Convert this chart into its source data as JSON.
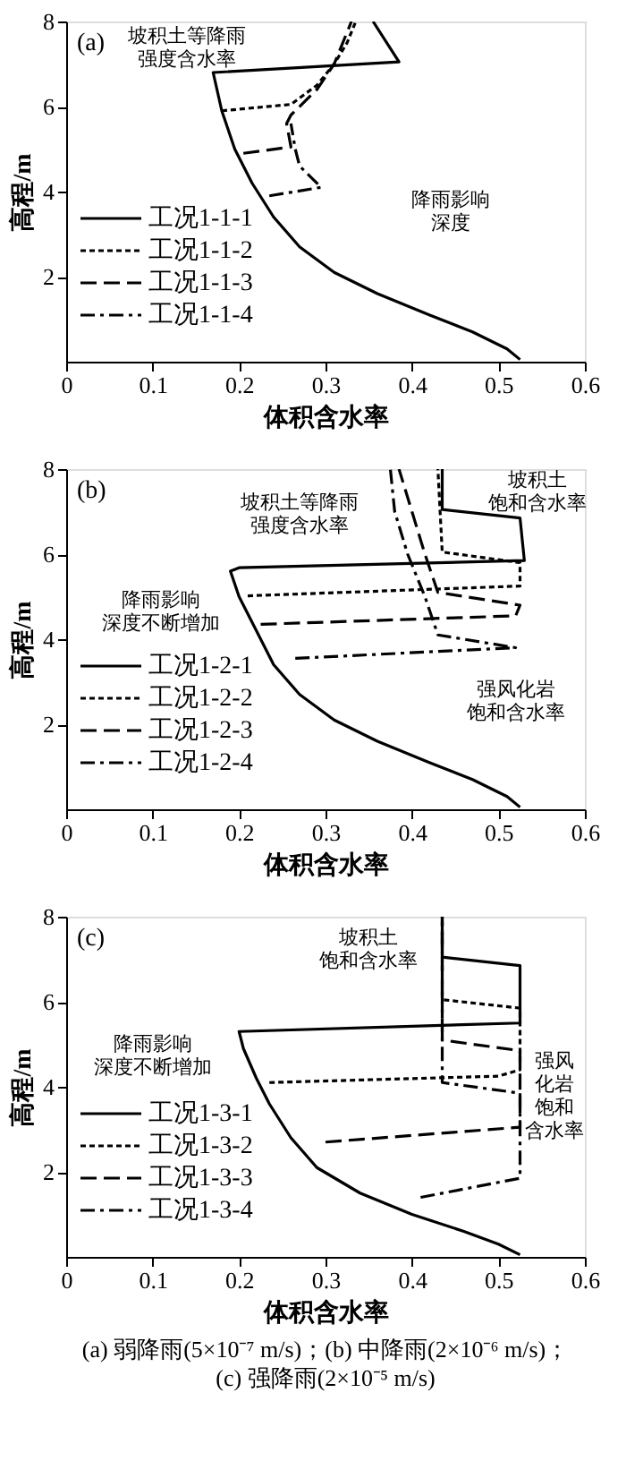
{
  "chart_data": [
    {
      "type": "line",
      "title": "(a)",
      "xlabel": "体积含水率",
      "ylabel": "高程/m",
      "xlim": [
        0,
        0.6
      ],
      "ylim": [
        0,
        8
      ],
      "xticks": [
        0,
        0.1,
        0.2,
        0.3,
        0.4,
        0.5,
        0.6
      ],
      "yticks": [
        2,
        4,
        6,
        8
      ],
      "legend": "bottom left",
      "grid": false,
      "annotations": [
        "坡积土等降雨强度含水率",
        "降雨影响深度"
      ],
      "series": [
        {
          "name": "工况1-1-1",
          "color": "#000000",
          "line_style": "solid",
          "x": [
            0.525,
            0.51,
            0.47,
            0.42,
            0.36,
            0.31,
            0.27,
            0.24,
            0.215,
            0.195,
            0.18,
            0.17,
            0.385,
            0.355
          ],
          "values": [
            0.05,
            0.3,
            0.7,
            1.1,
            1.6,
            2.1,
            2.7,
            3.4,
            4.2,
            5.0,
            5.9,
            6.8,
            7.05,
            8
          ]
        },
        {
          "name": "工况1-1-2",
          "color": "#000000",
          "line_style": "dotted",
          "x": [
            0.18,
            0.26,
            0.29,
            0.31,
            0.325,
            0.335
          ],
          "values": [
            5.9,
            6.05,
            6.5,
            7.0,
            7.5,
            8
          ]
        },
        {
          "name": "工况1-1-3",
          "color": "#000000",
          "line_style": "dashed",
          "x": [
            0.205,
            0.26,
            0.255,
            0.26,
            0.29,
            0.31,
            0.33
          ],
          "values": [
            4.9,
            5.05,
            5.6,
            5.8,
            6.4,
            7.0,
            8
          ]
        },
        {
          "name": "工况1-1-4",
          "color": "#000000",
          "line_style": "dashdot",
          "x": [
            0.235,
            0.295,
            0.27,
            0.265,
            0.26
          ],
          "values": [
            3.9,
            4.1,
            4.6,
            5.0,
            5.6
          ]
        }
      ]
    },
    {
      "type": "line",
      "title": "(b)",
      "xlabel": "体积含水率",
      "ylabel": "高程/m",
      "xlim": [
        0,
        0.6
      ],
      "ylim": [
        0,
        8
      ],
      "xticks": [
        0,
        0.1,
        0.2,
        0.3,
        0.4,
        0.5,
        0.6
      ],
      "yticks": [
        2,
        4,
        6,
        8
      ],
      "legend": "bottom left",
      "grid": false,
      "annotations": [
        "坡积土等降雨强度含水率",
        "坡积土饱和含水率",
        "降雨影响深度不断增加",
        "强风化岩饱和含水率"
      ],
      "series": [
        {
          "name": "工况1-2-1",
          "color": "#000000",
          "line_style": "solid",
          "x": [
            0.525,
            0.51,
            0.47,
            0.42,
            0.36,
            0.31,
            0.27,
            0.24,
            0.22,
            0.2,
            0.19,
            0.2,
            0.53,
            0.525,
            0.435,
            0.435
          ],
          "values": [
            0.05,
            0.3,
            0.7,
            1.1,
            1.6,
            2.1,
            2.7,
            3.4,
            4.2,
            5.0,
            5.6,
            5.68,
            5.85,
            6.85,
            7.05,
            8
          ]
        },
        {
          "name": "工况1-2-2",
          "color": "#000000",
          "line_style": "dotted",
          "x": [
            0.21,
            0.525,
            0.525,
            0.435,
            0.43
          ],
          "values": [
            5.02,
            5.25,
            5.8,
            6.05,
            8
          ]
        },
        {
          "name": "工况1-2-3",
          "color": "#000000",
          "line_style": "dashed",
          "x": [
            0.225,
            0.52,
            0.525,
            0.43,
            0.415,
            0.4,
            0.385
          ],
          "values": [
            4.35,
            4.55,
            4.8,
            5.1,
            6.0,
            7.0,
            8
          ]
        },
        {
          "name": "工况1-2-4",
          "color": "#000000",
          "line_style": "dashdot",
          "x": [
            0.265,
            0.52,
            0.43,
            0.415,
            0.395,
            0.38,
            0.375
          ],
          "values": [
            3.55,
            3.8,
            4.1,
            5.0,
            6.0,
            7.0,
            8
          ]
        }
      ]
    },
    {
      "type": "line",
      "title": "(c)",
      "xlabel": "体积含水率",
      "ylabel": "高程/m",
      "xlim": [
        0,
        0.6
      ],
      "ylim": [
        0,
        8
      ],
      "xticks": [
        0,
        0.1,
        0.2,
        0.3,
        0.4,
        0.5,
        0.6
      ],
      "yticks": [
        2,
        4,
        6,
        8
      ],
      "legend": "bottom left",
      "grid": false,
      "annotations": [
        "坡积土饱和含水率",
        "降雨影响深度不断增加",
        "强风化岩饱和含水率",
        "(a)  弱降雨(5×10⁻⁷ m/s)；(b)  中降雨(2×10⁻⁶ m/s)；",
        "(c)  强降雨(2×10⁻⁵ m/s)"
      ],
      "series": [
        {
          "name": "工况1-3-1",
          "color": "#000000",
          "line_style": "solid",
          "x": [
            0.525,
            0.5,
            0.46,
            0.4,
            0.34,
            0.29,
            0.26,
            0.235,
            0.22,
            0.205,
            0.2,
            0.525,
            0.525,
            0.435,
            0.435
          ],
          "values": [
            0.05,
            0.3,
            0.6,
            1.0,
            1.5,
            2.1,
            2.8,
            3.6,
            4.2,
            4.9,
            5.3,
            5.5,
            6.85,
            7.05,
            8
          ]
        },
        {
          "name": "工况1-3-2",
          "color": "#000000",
          "line_style": "dotted",
          "x": [
            0.235,
            0.5,
            0.525,
            0.525,
            0.435,
            0.435
          ],
          "values": [
            4.1,
            4.25,
            4.4,
            5.85,
            6.05,
            8
          ]
        },
        {
          "name": "工况1-3-3",
          "color": "#000000",
          "line_style": "dashed",
          "x": [
            0.3,
            0.525,
            0.525,
            0.435,
            0.435
          ],
          "values": [
            2.7,
            3.05,
            4.85,
            5.1,
            8
          ]
        },
        {
          "name": "工况1-3-4",
          "color": "#000000",
          "line_style": "dashdot",
          "x": [
            0.41,
            0.525,
            0.525,
            0.435,
            0.435
          ],
          "values": [
            1.4,
            1.85,
            3.85,
            4.1,
            8
          ]
        }
      ]
    }
  ]
}
